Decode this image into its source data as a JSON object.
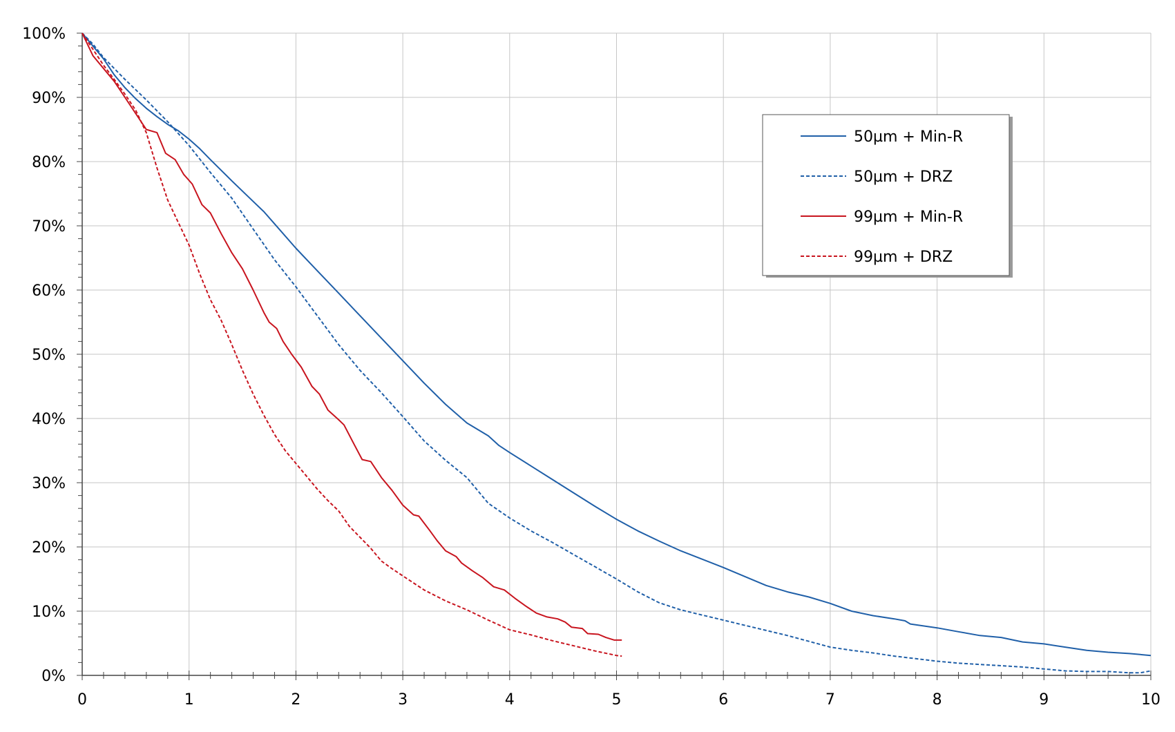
{
  "chart_data": {
    "type": "line",
    "title": "",
    "xlabel": "",
    "ylabel": "",
    "xlim": [
      0,
      10
    ],
    "ylim": [
      0,
      100
    ],
    "grid": true,
    "legend_position": "top-right",
    "x_ticks": [
      "0",
      "1",
      "2",
      "3",
      "4",
      "5",
      "6",
      "7",
      "8",
      "9",
      "10"
    ],
    "y_ticks": [
      "0%",
      "10%",
      "20%",
      "30%",
      "40%",
      "50%",
      "60%",
      "70%",
      "80%",
      "90%",
      "100%"
    ],
    "series": [
      {
        "name": "50µm + Min-R",
        "color": "#1f5fa8",
        "dash": "solid",
        "points": [
          [
            0,
            100
          ],
          [
            0.1,
            98
          ],
          [
            0.2,
            96
          ],
          [
            0.3,
            93.5
          ],
          [
            0.4,
            91.5
          ],
          [
            0.5,
            89.8
          ],
          [
            0.6,
            88.3
          ],
          [
            0.7,
            87
          ],
          [
            0.8,
            85.8
          ],
          [
            0.9,
            84.8
          ],
          [
            1.0,
            83.5
          ],
          [
            1.1,
            82
          ],
          [
            1.2,
            80.3
          ],
          [
            1.4,
            77
          ],
          [
            1.6,
            73.8
          ],
          [
            1.7,
            72.2
          ],
          [
            1.8,
            70.3
          ],
          [
            2.0,
            66.5
          ],
          [
            2.2,
            63
          ],
          [
            2.4,
            59.5
          ],
          [
            2.6,
            56
          ],
          [
            2.8,
            52.5
          ],
          [
            3.0,
            49
          ],
          [
            3.2,
            45.5
          ],
          [
            3.4,
            42.2
          ],
          [
            3.6,
            39.3
          ],
          [
            3.8,
            37.3
          ],
          [
            3.9,
            35.8
          ],
          [
            4.0,
            34.7
          ],
          [
            4.2,
            32.6
          ],
          [
            4.4,
            30.5
          ],
          [
            4.6,
            28.4
          ],
          [
            4.8,
            26.3
          ],
          [
            5.0,
            24.3
          ],
          [
            5.2,
            22.5
          ],
          [
            5.4,
            20.9
          ],
          [
            5.6,
            19.4
          ],
          [
            5.8,
            18.1
          ],
          [
            6.0,
            16.8
          ],
          [
            6.2,
            15.4
          ],
          [
            6.4,
            14
          ],
          [
            6.6,
            13
          ],
          [
            6.8,
            12.2
          ],
          [
            7.0,
            11.2
          ],
          [
            7.2,
            10
          ],
          [
            7.4,
            9.3
          ],
          [
            7.6,
            8.8
          ],
          [
            7.7,
            8.5
          ],
          [
            7.75,
            8.0
          ],
          [
            8.0,
            7.4
          ],
          [
            8.2,
            6.8
          ],
          [
            8.4,
            6.2
          ],
          [
            8.6,
            5.9
          ],
          [
            8.8,
            5.2
          ],
          [
            9.0,
            4.9
          ],
          [
            9.2,
            4.4
          ],
          [
            9.4,
            3.9
          ],
          [
            9.6,
            3.6
          ],
          [
            9.8,
            3.4
          ],
          [
            10,
            3.1
          ]
        ]
      },
      {
        "name": "50µm + DRZ",
        "color": "#1f5fa8",
        "dash": "dashed",
        "points": [
          [
            0,
            100
          ],
          [
            0.1,
            98.3
          ],
          [
            0.2,
            96.2
          ],
          [
            0.3,
            94.5
          ],
          [
            0.4,
            92.8
          ],
          [
            0.6,
            89.6
          ],
          [
            0.8,
            86.2
          ],
          [
            1.0,
            82.5
          ],
          [
            1.2,
            78.3
          ],
          [
            1.4,
            74.3
          ],
          [
            1.6,
            69.5
          ],
          [
            1.8,
            64.7
          ],
          [
            2.0,
            60.5
          ],
          [
            2.2,
            56
          ],
          [
            2.4,
            51.5
          ],
          [
            2.6,
            47.5
          ],
          [
            2.8,
            44
          ],
          [
            3.0,
            40.3
          ],
          [
            3.2,
            36.5
          ],
          [
            3.4,
            33.5
          ],
          [
            3.6,
            30.8
          ],
          [
            3.8,
            26.8
          ],
          [
            4.0,
            24.5
          ],
          [
            4.2,
            22.5
          ],
          [
            4.4,
            20.7
          ],
          [
            4.6,
            18.8
          ],
          [
            4.8,
            16.9
          ],
          [
            5.0,
            15
          ],
          [
            5.2,
            13
          ],
          [
            5.4,
            11.3
          ],
          [
            5.6,
            10.2
          ],
          [
            5.8,
            9.4
          ],
          [
            6.0,
            8.6
          ],
          [
            6.2,
            7.8
          ],
          [
            6.4,
            7
          ],
          [
            6.6,
            6.2
          ],
          [
            6.8,
            5.3
          ],
          [
            7.0,
            4.4
          ],
          [
            7.2,
            3.9
          ],
          [
            7.4,
            3.5
          ],
          [
            7.6,
            3.0
          ],
          [
            7.8,
            2.6
          ],
          [
            8.0,
            2.2
          ],
          [
            8.2,
            1.9
          ],
          [
            8.4,
            1.7
          ],
          [
            8.6,
            1.5
          ],
          [
            8.8,
            1.3
          ],
          [
            9.0,
            1.0
          ],
          [
            9.2,
            0.7
          ],
          [
            9.4,
            0.6
          ],
          [
            9.6,
            0.6
          ],
          [
            9.8,
            0.4
          ],
          [
            9.9,
            0.4
          ],
          [
            10,
            0.7
          ]
        ]
      },
      {
        "name": "99µm + Min-R",
        "color": "#c8141e",
        "dash": "solid",
        "points": [
          [
            0,
            100
          ],
          [
            0.1,
            96.5
          ],
          [
            0.2,
            94.5
          ],
          [
            0.3,
            92.5
          ],
          [
            0.4,
            90
          ],
          [
            0.5,
            87.5
          ],
          [
            0.6,
            85
          ],
          [
            0.7,
            84.5
          ],
          [
            0.78,
            81.3
          ],
          [
            0.87,
            80.3
          ],
          [
            0.95,
            78
          ],
          [
            1.03,
            76.5
          ],
          [
            1.12,
            73.3
          ],
          [
            1.2,
            72
          ],
          [
            1.3,
            68.8
          ],
          [
            1.4,
            65.8
          ],
          [
            1.5,
            63.3
          ],
          [
            1.6,
            60
          ],
          [
            1.7,
            56.5
          ],
          [
            1.75,
            55
          ],
          [
            1.82,
            54
          ],
          [
            1.88,
            52
          ],
          [
            1.96,
            50
          ],
          [
            2.05,
            48
          ],
          [
            2.15,
            45
          ],
          [
            2.22,
            43.8
          ],
          [
            2.3,
            41.3
          ],
          [
            2.4,
            39.8
          ],
          [
            2.45,
            39
          ],
          [
            2.55,
            35.8
          ],
          [
            2.62,
            33.6
          ],
          [
            2.7,
            33.3
          ],
          [
            2.8,
            30.8
          ],
          [
            2.9,
            28.8
          ],
          [
            3.0,
            26.5
          ],
          [
            3.1,
            25
          ],
          [
            3.15,
            24.8
          ],
          [
            3.25,
            22.6
          ],
          [
            3.32,
            21
          ],
          [
            3.4,
            19.4
          ],
          [
            3.5,
            18.5
          ],
          [
            3.55,
            17.5
          ],
          [
            3.65,
            16.3
          ],
          [
            3.75,
            15.2
          ],
          [
            3.85,
            13.8
          ],
          [
            3.95,
            13.3
          ],
          [
            4.05,
            12
          ],
          [
            4.15,
            10.8
          ],
          [
            4.25,
            9.7
          ],
          [
            4.35,
            9.1
          ],
          [
            4.45,
            8.8
          ],
          [
            4.52,
            8.3
          ],
          [
            4.58,
            7.5
          ],
          [
            4.68,
            7.3
          ],
          [
            4.73,
            6.5
          ],
          [
            4.83,
            6.4
          ],
          [
            4.9,
            5.9
          ],
          [
            4.98,
            5.5
          ],
          [
            5.05,
            5.5
          ]
        ]
      },
      {
        "name": "99µm + DRZ",
        "color": "#c8141e",
        "dash": "dashed",
        "points": [
          [
            0,
            100
          ],
          [
            0.1,
            97.5
          ],
          [
            0.2,
            95
          ],
          [
            0.3,
            92.8
          ],
          [
            0.4,
            90.5
          ],
          [
            0.5,
            88
          ],
          [
            0.6,
            84.5
          ],
          [
            0.7,
            79
          ],
          [
            0.8,
            74
          ],
          [
            0.9,
            70.5
          ],
          [
            1.0,
            67
          ],
          [
            1.1,
            62.5
          ],
          [
            1.2,
            58.5
          ],
          [
            1.3,
            55.3
          ],
          [
            1.4,
            51.5
          ],
          [
            1.5,
            47.5
          ],
          [
            1.6,
            43.8
          ],
          [
            1.7,
            40.5
          ],
          [
            1.8,
            37.5
          ],
          [
            1.9,
            35
          ],
          [
            2.0,
            33
          ],
          [
            2.1,
            31
          ],
          [
            2.2,
            29
          ],
          [
            2.3,
            27.2
          ],
          [
            2.4,
            25.6
          ],
          [
            2.5,
            23.2
          ],
          [
            2.6,
            21.5
          ],
          [
            2.7,
            19.8
          ],
          [
            2.8,
            17.8
          ],
          [
            2.9,
            16.6
          ],
          [
            3.0,
            15.5
          ],
          [
            3.2,
            13.3
          ],
          [
            3.4,
            11.6
          ],
          [
            3.6,
            10.2
          ],
          [
            3.8,
            8.6
          ],
          [
            4.0,
            7.1
          ],
          [
            4.2,
            6.3
          ],
          [
            4.4,
            5.4
          ],
          [
            4.6,
            4.6
          ],
          [
            4.8,
            3.8
          ],
          [
            5.0,
            3.1
          ],
          [
            5.05,
            3.0
          ]
        ]
      }
    ]
  }
}
